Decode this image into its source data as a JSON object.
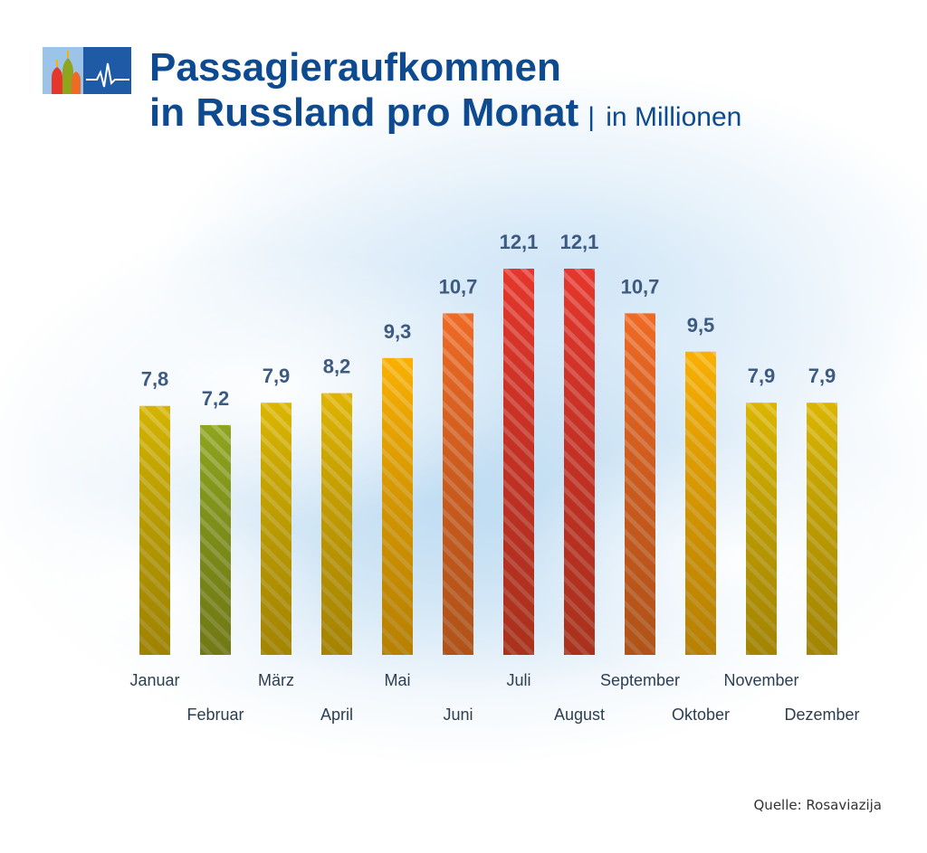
{
  "header": {
    "title_line1": "Passagieraufkommen",
    "title_line2": "in Russland pro Monat",
    "unit_separator": "|",
    "unit": "in Millionen"
  },
  "chart_data": {
    "type": "bar",
    "title": "Passagieraufkommen in Russland pro Monat",
    "unit": "in Millionen",
    "xlabel": "",
    "ylabel": "",
    "ylim": [
      0,
      12.1
    ],
    "grid": false,
    "categories": [
      "Januar",
      "Februar",
      "März",
      "April",
      "Mai",
      "Juni",
      "Juli",
      "August",
      "September",
      "Oktober",
      "November",
      "Dezember"
    ],
    "values": [
      7.8,
      7.2,
      7.9,
      8.2,
      9.3,
      10.7,
      12.1,
      12.1,
      10.7,
      9.5,
      7.9,
      7.9
    ],
    "value_labels": [
      "7,8",
      "7,2",
      "7,9",
      "8,2",
      "9,3",
      "10,7",
      "12,1",
      "12,1",
      "10,7",
      "9,5",
      "7,9",
      "7,9"
    ],
    "bar_colors": [
      "#d4b400",
      "#8fa51e",
      "#dbb600",
      "#dfb400",
      "#f9b000",
      "#ef6a24",
      "#e5372b",
      "#e5372b",
      "#ef6a24",
      "#f9b000",
      "#dbb600",
      "#dbb600"
    ]
  },
  "source": "Quelle: Rosaviazija"
}
